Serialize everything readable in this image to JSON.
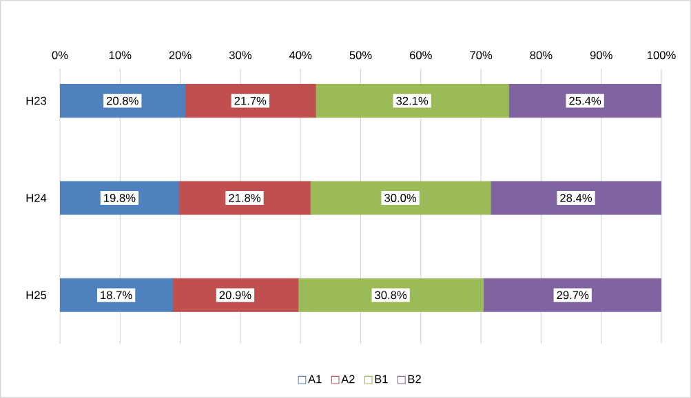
{
  "chart_data": {
    "type": "bar",
    "orientation": "horizontal",
    "stacked": true,
    "categories": [
      "H23",
      "H24",
      "H25"
    ],
    "series": [
      {
        "name": "A1",
        "color": "#4f81bd",
        "values": [
          20.8,
          19.8,
          18.7
        ],
        "value_labels": [
          "20.8%",
          "19.8%",
          "18.7%"
        ]
      },
      {
        "name": "A2",
        "color": "#c0504d",
        "values": [
          21.7,
          21.8,
          20.9
        ],
        "value_labels": [
          "21.7%",
          "21.8%",
          "20.9%"
        ]
      },
      {
        "name": "B1",
        "color": "#9bbb59",
        "values": [
          32.1,
          30.0,
          30.8
        ],
        "value_labels": [
          "32.1%",
          "30.0%",
          "30.8%"
        ]
      },
      {
        "name": "B2",
        "color": "#8064a2",
        "values": [
          25.4,
          28.4,
          29.7
        ],
        "value_labels": [
          "25.4%",
          "28.4%",
          "29.7%"
        ]
      }
    ],
    "xlim": [
      0,
      100
    ],
    "xticks": [
      {
        "value": 0,
        "label": "0%"
      },
      {
        "value": 10,
        "label": "10%"
      },
      {
        "value": 20,
        "label": "20%"
      },
      {
        "value": 30,
        "label": "30%"
      },
      {
        "value": 40,
        "label": "40%"
      },
      {
        "value": 50,
        "label": "50%"
      },
      {
        "value": 60,
        "label": "60%"
      },
      {
        "value": 70,
        "label": "70%"
      },
      {
        "value": 80,
        "label": "80%"
      },
      {
        "value": 90,
        "label": "90%"
      },
      {
        "value": 100,
        "label": "100%"
      }
    ],
    "grid": "x",
    "legend": "bottom"
  }
}
